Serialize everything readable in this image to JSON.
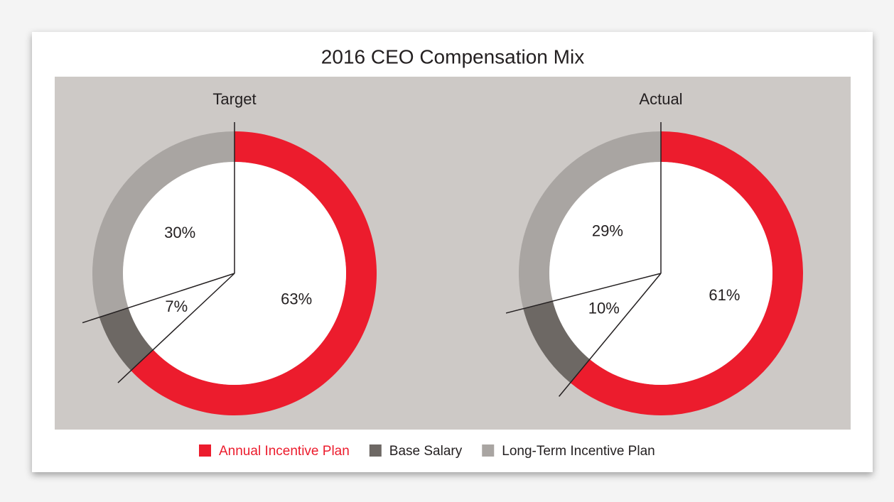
{
  "title": "2016 CEO Compensation Mix",
  "legend": {
    "labels": [
      "Annual Incentive Plan",
      "Base Salary",
      "Long-Term Incentive Plan"
    ],
    "colors": [
      "#ec1c2d",
      "#6d6864",
      "#a9a5a2"
    ]
  },
  "chart_data": [
    {
      "type": "pie",
      "title": "Target",
      "values": [
        63,
        7,
        30
      ],
      "value_labels": [
        "63%",
        "7%",
        "30%"
      ]
    },
    {
      "type": "pie",
      "title": "Actual",
      "values": [
        61,
        10,
        29
      ],
      "value_labels": [
        "61%",
        "10%",
        "29%"
      ]
    }
  ]
}
